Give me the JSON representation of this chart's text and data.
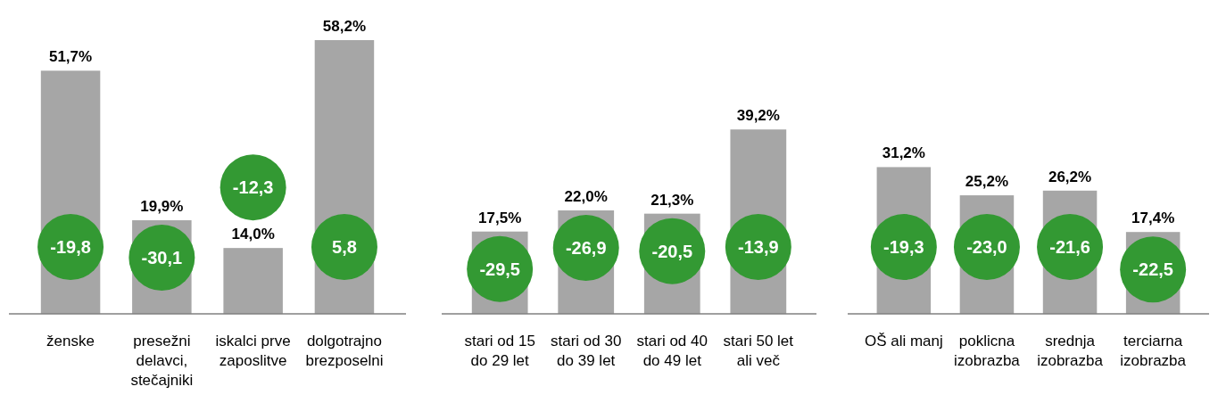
{
  "chart_data": [
    {
      "type": "bar",
      "categories": [
        "ženske",
        "presežni delavci, stečajniki",
        "iskalci prve zaposlitve",
        "dolgotrajno brezposelni"
      ],
      "values": [
        51.7,
        19.9,
        14.0,
        58.2
      ],
      "value_labels": [
        "51,7%",
        "19,9%",
        "14,0%",
        "58,2%"
      ],
      "color": "#a6a6a6",
      "annotations": [
        "-19,8",
        "-30,1",
        "-12,3",
        "5,8"
      ]
    },
    {
      "type": "bar",
      "categories": [
        "stari od 15 do 29 let",
        "stari od 30 do 39 let",
        "stari od 40 do 49 let",
        "stari 50 let ali več"
      ],
      "values": [
        17.5,
        22.0,
        21.3,
        39.2
      ],
      "value_labels": [
        "17,5%",
        "22,0%",
        "21,3%",
        "39,2%"
      ],
      "color": "#a6a6a6",
      "annotations": [
        "-29,5",
        "-26,9",
        "-20,5",
        "-13,9"
      ]
    },
    {
      "type": "bar",
      "categories": [
        "OŠ ali manj",
        "poklicna izobrazba",
        "srednja izobrazba",
        "terciarna izobrazba"
      ],
      "values": [
        31.2,
        25.2,
        26.2,
        17.4
      ],
      "value_labels": [
        "31,2%",
        "25,2%",
        "26,2%",
        "17,4%"
      ],
      "color": "#a6a6a6",
      "annotations": [
        "-19,3",
        "-23,0",
        "-21,6",
        "-22,5"
      ]
    }
  ]
}
